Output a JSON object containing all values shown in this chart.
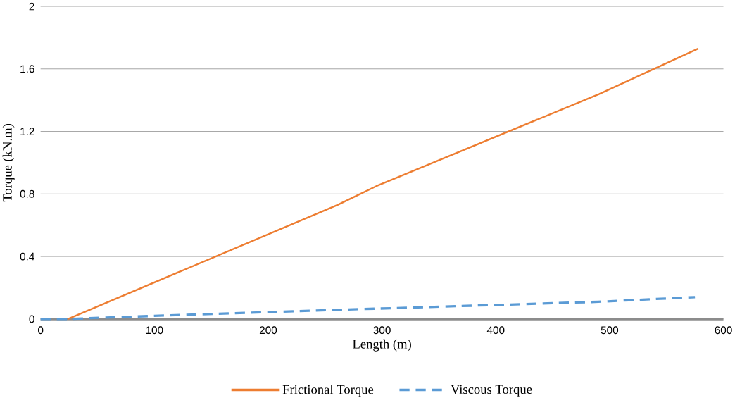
{
  "chart_data": {
    "type": "line",
    "xlabel": "Length (m)",
    "ylabel": "Torque (kN.m)",
    "xlim": [
      0,
      600
    ],
    "xticks": [
      0,
      100,
      200,
      300,
      400,
      500,
      600
    ],
    "ylim": [
      0,
      2
    ],
    "yticks": [
      0,
      0.4,
      0.8,
      1.2,
      1.6,
      2
    ],
    "grid": "y",
    "legend": "bottom",
    "series": [
      {
        "name": "Frictional Torque",
        "color": "#ed7d31",
        "line_style": "solid",
        "x": [
          24,
          261,
          295,
          491,
          578
        ],
        "values": [
          0,
          0.73,
          0.85,
          1.44,
          1.73
        ]
      },
      {
        "name": "Viscous Torque",
        "color": "#5b9bd5",
        "line_style": "dashed",
        "x": [
          0,
          23,
          100,
          268,
          490,
          575
        ],
        "values": [
          0,
          0,
          0.02,
          0.06,
          0.11,
          0.14
        ]
      }
    ]
  }
}
